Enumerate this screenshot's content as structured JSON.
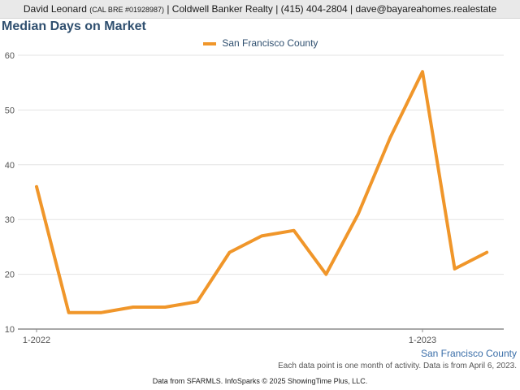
{
  "header": {
    "agent_name": "David Leonard",
    "license": "(CAL BRE #01928987)",
    "brokerage": "Coldwell Banker Realty",
    "phone": "(415) 404-2804",
    "email": "dave@bayareahomes.realestate"
  },
  "chart_data": {
    "type": "line",
    "title": "Median Days on Market",
    "xlabel": "",
    "ylabel": "",
    "ylim": [
      10,
      60
    ],
    "yticks": [
      10,
      20,
      30,
      40,
      50,
      60
    ],
    "x_tick_labels": [
      {
        "index": 0,
        "label": "1-2022"
      },
      {
        "index": 12,
        "label": "1-2023"
      }
    ],
    "grid": true,
    "legend_position": "top",
    "series": [
      {
        "name": "San Francisco County",
        "color": "#f0962a",
        "values": [
          36,
          13,
          13,
          14,
          14,
          15,
          24,
          27,
          28,
          20,
          31,
          45,
          57,
          21,
          24
        ]
      }
    ]
  },
  "footnotes": {
    "series_label": "San Francisco County",
    "note": "Each data point is one month of activity. Data is from April 6, 2023.",
    "credit": "Data from SFARMLS. InfoSparks © 2025 ShowingTime Plus, LLC."
  }
}
